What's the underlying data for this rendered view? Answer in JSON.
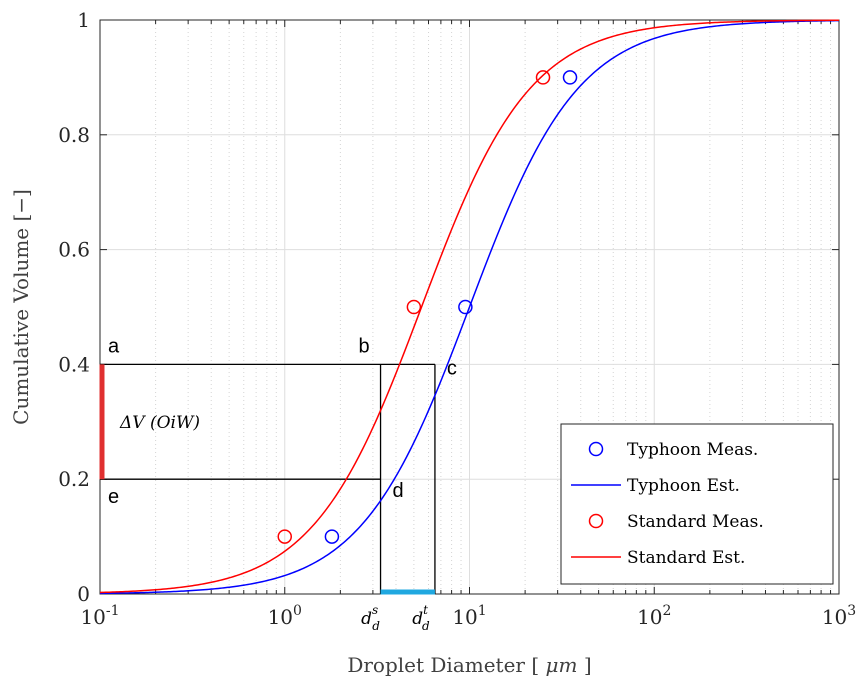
{
  "chart_data": {
    "type": "line",
    "xscale": "log",
    "xlim": [
      0.1,
      1000
    ],
    "ylim": [
      0,
      1
    ],
    "xlabel_text": "Droplet Diameter",
    "xlabel_unit": "μm",
    "ylabel": "Cumulative Volume [−]",
    "grid": true,
    "legend_position": "lower-right",
    "x_ticks": [
      {
        "value": 0.1,
        "base": "10",
        "exp": "-1"
      },
      {
        "value": 1,
        "base": "10",
        "exp": "0"
      },
      {
        "value": 10,
        "base": "10",
        "exp": "1"
      },
      {
        "value": 100,
        "base": "10",
        "exp": "2"
      },
      {
        "value": 1000,
        "base": "10",
        "exp": "3"
      }
    ],
    "y_ticks": [
      "0",
      "0.2",
      "0.4",
      "0.6",
      "0.8",
      "1"
    ],
    "series": [
      {
        "name": "Typhoon Meas.",
        "kind": "markers",
        "color": "#0000ff",
        "x": [
          1.8,
          9.5,
          35
        ],
        "y": [
          0.1,
          0.5,
          0.9
        ]
      },
      {
        "name": "Typhoon Est.",
        "kind": "curve",
        "color": "#0000ff",
        "median": 10.0,
        "sigma_log10": 0.5
      },
      {
        "name": "Standard Meas.",
        "kind": "markers",
        "color": "#ff0000",
        "x": [
          1.0,
          5.0,
          25
        ],
        "y": [
          0.1,
          0.5,
          0.9
        ]
      },
      {
        "name": "Standard Est.",
        "kind": "curve",
        "color": "#ff0000",
        "median": 5.5,
        "sigma_log10": 0.5
      }
    ],
    "annotations": {
      "point_labels": [
        {
          "text": "a",
          "x": 0.1,
          "y": 0.4
        },
        {
          "text": "b",
          "x": 3.3,
          "y": 0.4
        },
        {
          "text": "c",
          "x": 6.5,
          "y": 0.4
        },
        {
          "text": "d",
          "x": 3.3,
          "y": 0.2
        },
        {
          "text": "e",
          "x": 0.1,
          "y": 0.2
        }
      ],
      "delta_label": "ΔV (OiW)",
      "delta_range": [
        0.2,
        0.4
      ],
      "ds_x": 3.3,
      "dt_x": 6.5,
      "ds_label": {
        "base": "d",
        "sub": "d",
        "sup": "s"
      },
      "dt_label": {
        "base": "d",
        "sub": "d",
        "sup": "t"
      },
      "accent_red": "#e03030",
      "accent_cyan": "#20a8e0"
    }
  }
}
